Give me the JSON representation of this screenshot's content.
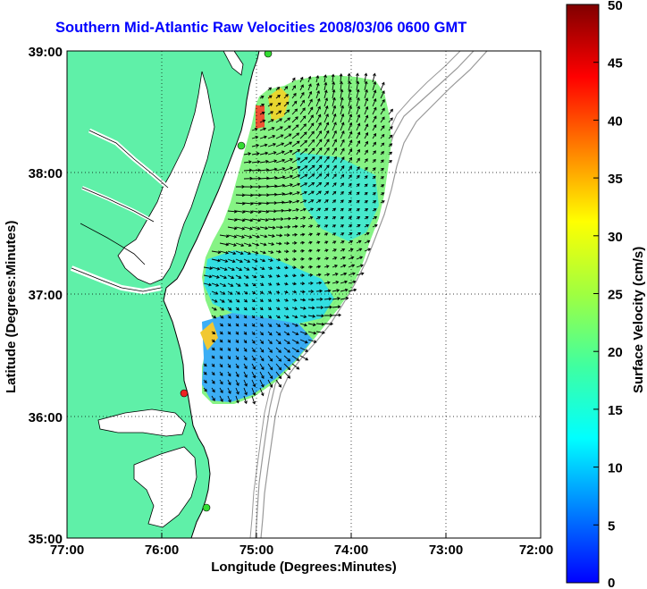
{
  "title": "Southern Mid-Atlantic Raw Velocities 2008/03/06 0600 GMT",
  "x_axis": {
    "label": "Longitude (Degrees:Minutes)",
    "ticks": [
      "77:00",
      "76:00",
      "75:00",
      "74:00",
      "73:00",
      "72:00"
    ]
  },
  "y_axis": {
    "label": "Latitude (Degrees:Minutes)",
    "ticks": [
      "39:00",
      "38:00",
      "37:00",
      "36:00",
      "35:00"
    ]
  },
  "colorbar": {
    "label": "Surface Velocity (cm/s)",
    "ticks": [
      "50",
      "45",
      "40",
      "35",
      "30",
      "25",
      "20",
      "15",
      "10",
      "5",
      "0"
    ],
    "range": [
      0,
      50
    ],
    "colormap": "jet"
  },
  "map": {
    "lon_range": [
      -77,
      -72
    ],
    "lat_range": [
      35,
      39
    ],
    "land_color": "#5ff0a8",
    "water_color": "#ffffff",
    "coastline_color": "#000000",
    "bathymetry_color": "#999999",
    "grid": "dotted",
    "vector_color": "#000000"
  },
  "stations": [
    {
      "color": "#33dd33"
    },
    {
      "color": "#33dd33"
    },
    {
      "color": "#ee2222"
    },
    {
      "color": "#33dd33"
    }
  ]
}
